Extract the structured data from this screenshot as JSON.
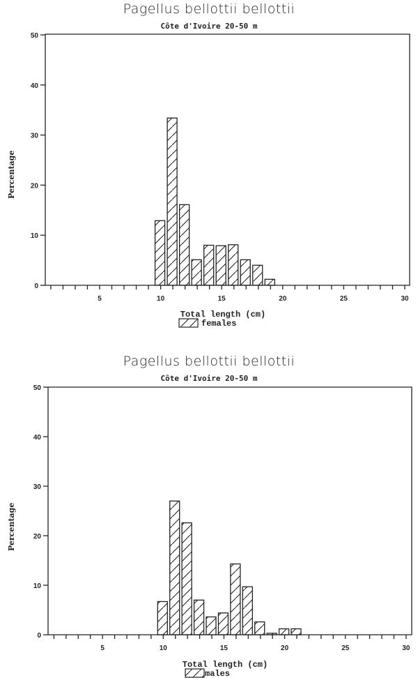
{
  "chart_data": [
    {
      "type": "bar",
      "title": "Pagellus bellottii bellottii",
      "subtitle": "Côte d'Ivoire  20-50 m",
      "xlabel": "Total length (cm)",
      "ylabel": "Percentage",
      "legend": "females",
      "xlim": [
        0,
        30
      ],
      "ylim": [
        0,
        50
      ],
      "xticks": [
        5,
        10,
        15,
        20,
        25,
        30
      ],
      "yticks": [
        0,
        10,
        20,
        30,
        40,
        50
      ],
      "grid": false,
      "categories": [
        10,
        11,
        12,
        13,
        14,
        15,
        16,
        17,
        18,
        19
      ],
      "values": [
        12.9,
        33.4,
        16.1,
        5.1,
        8.0,
        7.9,
        8.1,
        5.1,
        4.0,
        1.2
      ]
    },
    {
      "type": "bar",
      "title": "Pagellus bellottii bellottii",
      "subtitle": "Côte d'Ivoire  20-50 m",
      "xlabel": "Total length (cm)",
      "ylabel": "Percentage",
      "legend": "males",
      "xlim": [
        0,
        30
      ],
      "ylim": [
        0,
        50
      ],
      "xticks": [
        5,
        10,
        15,
        20,
        25,
        30
      ],
      "yticks": [
        0,
        10,
        20,
        30,
        40,
        50
      ],
      "grid": false,
      "categories": [
        10,
        11,
        12,
        13,
        14,
        15,
        16,
        17,
        18,
        19,
        20,
        21
      ],
      "values": [
        6.7,
        27.0,
        22.6,
        7.0,
        3.6,
        4.4,
        14.3,
        9.7,
        2.6,
        0.3,
        1.2,
        1.2
      ]
    }
  ],
  "charts": [
    {
      "title": "Pagellus bellottii bellottii",
      "subtitle": "Côte d'Ivoire  20-50 m",
      "xlabel": "Total length (cm)",
      "ylabel": "Percentage",
      "legend": "females"
    },
    {
      "title": "Pagellus bellottii bellottii",
      "subtitle": "Côte d'Ivoire  20-50 m",
      "xlabel": "Total length (cm)",
      "ylabel": "Percentage",
      "legend": "males"
    }
  ],
  "colors": {
    "ink": "#222222",
    "background": "#ffffff"
  }
}
